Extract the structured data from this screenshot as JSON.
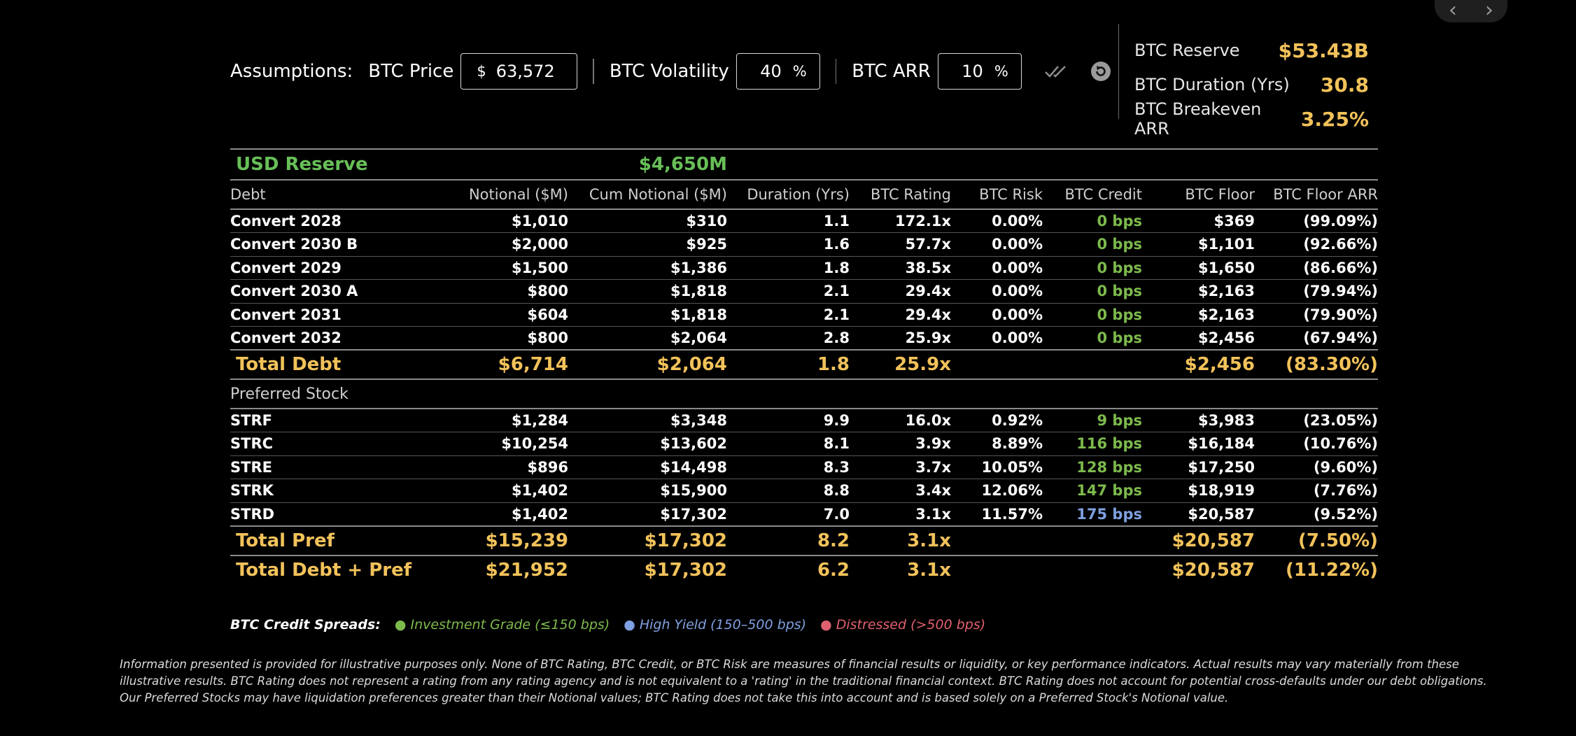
{
  "assumptions": {
    "label": "Assumptions:",
    "btc_price": {
      "label": "BTC Price",
      "prefix": "$",
      "value": "63,572"
    },
    "btc_volatility": {
      "label": "BTC Volatility",
      "value": "40",
      "suffix": "%"
    },
    "btc_arr": {
      "label": "BTC ARR",
      "value": "10",
      "suffix": "%"
    }
  },
  "stats": [
    {
      "label": "BTC Reserve",
      "value": "$53.43B"
    },
    {
      "label": "BTC Duration (Yrs)",
      "value": "30.8"
    },
    {
      "label": "BTC Breakeven ARR",
      "value": "3.25%"
    }
  ],
  "reserve": {
    "label": "USD Reserve",
    "value": "$4,650M"
  },
  "columns": [
    "Debt",
    "Notional ($M)",
    "Cum Notional ($M)",
    "Duration (Yrs)",
    "BTC Rating",
    "BTC Risk",
    "BTC Credit",
    "BTC Floor",
    "BTC Floor ARR"
  ],
  "debt_rows": [
    {
      "name": "Convert 2028",
      "notional": "$1,010",
      "cum": "$310",
      "duration": "1.1",
      "rating": "172.1x",
      "risk": "0.00%",
      "credit": "0 bps",
      "floor": "$369",
      "floor_arr": "(99.09%)"
    },
    {
      "name": "Convert 2030 B",
      "notional": "$2,000",
      "cum": "$925",
      "duration": "1.6",
      "rating": "57.7x",
      "risk": "0.00%",
      "credit": "0 bps",
      "floor": "$1,101",
      "floor_arr": "(92.66%)"
    },
    {
      "name": "Convert 2029",
      "notional": "$1,500",
      "cum": "$1,386",
      "duration": "1.8",
      "rating": "38.5x",
      "risk": "0.00%",
      "credit": "0 bps",
      "floor": "$1,650",
      "floor_arr": "(86.66%)"
    },
    {
      "name": "Convert 2030 A",
      "notional": "$800",
      "cum": "$1,818",
      "duration": "2.1",
      "rating": "29.4x",
      "risk": "0.00%",
      "credit": "0 bps",
      "floor": "$2,163",
      "floor_arr": "(79.94%)"
    },
    {
      "name": "Convert 2031",
      "notional": "$604",
      "cum": "$1,818",
      "duration": "2.1",
      "rating": "29.4x",
      "risk": "0.00%",
      "credit": "0 bps",
      "floor": "$2,163",
      "floor_arr": "(79.90%)"
    },
    {
      "name": "Convert 2032",
      "notional": "$800",
      "cum": "$2,064",
      "duration": "2.8",
      "rating": "25.9x",
      "risk": "0.00%",
      "credit": "0 bps",
      "floor": "$2,456",
      "floor_arr": "(67.94%)"
    }
  ],
  "total_debt": {
    "name": "Total Debt",
    "notional": "$6,714",
    "cum": "$2,064",
    "duration": "1.8",
    "rating": "25.9x",
    "floor": "$2,456",
    "floor_arr": "(83.30%)"
  },
  "pref_section": "Preferred Stock",
  "pref_rows": [
    {
      "name": "STRF",
      "notional": "$1,284",
      "cum": "$3,348",
      "duration": "9.9",
      "rating": "16.0x",
      "risk": "0.92%",
      "credit": "9 bps",
      "floor": "$3,983",
      "floor_arr": "(23.05%)"
    },
    {
      "name": "STRC",
      "notional": "$10,254",
      "cum": "$13,602",
      "duration": "8.1",
      "rating": "3.9x",
      "risk": "8.89%",
      "credit": "116 bps",
      "floor": "$16,184",
      "floor_arr": "(10.76%)"
    },
    {
      "name": "STRE",
      "notional": "$896",
      "cum": "$14,498",
      "duration": "8.3",
      "rating": "3.7x",
      "risk": "10.05%",
      "credit": "128 bps",
      "floor": "$17,250",
      "floor_arr": "(9.60%)"
    },
    {
      "name": "STRK",
      "notional": "$1,402",
      "cum": "$15,900",
      "duration": "8.8",
      "rating": "3.4x",
      "risk": "12.06%",
      "credit": "147 bps",
      "floor": "$18,919",
      "floor_arr": "(7.76%)"
    },
    {
      "name": "STRD",
      "notional": "$1,402",
      "cum": "$17,302",
      "duration": "7.0",
      "rating": "3.1x",
      "risk": "11.57%",
      "credit": "175 bps",
      "floor": "$20,587",
      "floor_arr": "(9.52%)"
    }
  ],
  "total_pref": {
    "name": "Total Pref",
    "notional": "$15,239",
    "cum": "$17,302",
    "duration": "8.2",
    "rating": "3.1x",
    "floor": "$20,587",
    "floor_arr": "(7.50%)"
  },
  "total_all": {
    "name": "Total Debt + Pref",
    "notional": "$21,952",
    "cum": "$17,302",
    "duration": "6.2",
    "rating": "3.1x",
    "floor": "$20,587",
    "floor_arr": "(11.22%)"
  },
  "legend": {
    "title": "BTC Credit Spreads:",
    "items": [
      {
        "label": "Investment Grade (≤150 bps)",
        "color": "#7dba4c"
      },
      {
        "label": "High Yield (150–500 bps)",
        "color": "#7fa0e0"
      },
      {
        "label": "Distressed (>500 bps)",
        "color": "#e06070"
      }
    ]
  },
  "colors": {
    "accent": "#f2c25a",
    "reserve": "#68bf58",
    "investment_grade": "#7dba4c",
    "high_yield": "#7fa0e0"
  },
  "disclaimer": "Information presented is provided for illustrative purposes only. None of BTC Rating, BTC Credit, or BTC Risk are measures of financial results or liquidity, or key performance indicators. Actual results may vary materially from these illustrative results. BTC Rating does not represent a rating from any rating agency and is not equivalent to a 'rating' in the traditional financial context. BTC Rating does not account for potential cross-defaults under our debt obligations. Our Preferred Stocks may have liquidation preferences greater than their Notional values; BTC Rating does not take this into account and is based solely on a Preferred Stock's Notional value."
}
